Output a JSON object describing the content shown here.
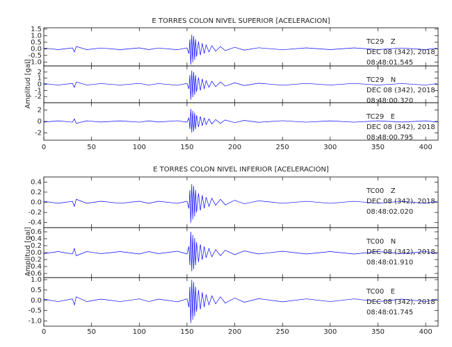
{
  "chart_data": [
    {
      "type": "line",
      "title": "E TORRES COLON NIVEL SUPERIOR [ACELERACION]",
      "y_label": "Amplitud [gal]",
      "color": "#0000ff",
      "xlim": [
        0,
        413
      ],
      "xticks": [
        0,
        50,
        100,
        150,
        200,
        250,
        300,
        350,
        400
      ],
      "x": [
        0,
        15,
        30,
        32,
        34,
        45,
        60,
        80,
        100,
        110,
        120,
        140,
        150,
        152,
        153,
        154,
        155,
        156,
        157,
        158,
        159,
        160,
        162,
        164,
        166,
        168,
        170,
        173,
        176,
        180,
        185,
        190,
        200,
        210,
        225,
        250,
        275,
        300,
        325,
        350,
        375,
        400,
        412
      ],
      "panels": [
        {
          "station": "TC29   Z",
          "date": "DEC 08 (342), 2018",
          "time": "08:48:01.545",
          "ylim": [
            -1.3,
            1.6
          ],
          "yticks": [
            {
              "value": -1,
              "label": "-1.0"
            },
            -0.5,
            {
              "value": 0,
              "label": "0.0"
            },
            0.5,
            {
              "value": 1,
              "label": "1.0"
            },
            1.5
          ],
          "values": [
            0.06,
            -0.06,
            0.07,
            -0.24,
            0.18,
            -0.06,
            0.06,
            -0.06,
            0.07,
            -0.06,
            0.06,
            -0.07,
            0.07,
            -0.36,
            0.72,
            -1.2,
            1.08,
            -1.02,
            0.96,
            -0.84,
            0.72,
            -0.6,
            0.54,
            -0.48,
            0.42,
            -0.36,
            0.3,
            -0.24,
            0.24,
            -0.18,
            0.18,
            -0.14,
            0.12,
            -0.1,
            0.08,
            -0.07,
            0.07,
            -0.06,
            0.07,
            -0.06,
            0.06,
            -0.06,
            0.06
          ]
        },
        {
          "station": "TC29   N",
          "date": "DEC 08 (342), 2018",
          "time": "08:48:00.320",
          "ylim": [
            -3,
            3
          ],
          "yticks": [
            -2,
            -1,
            0,
            1,
            2
          ],
          "values": [
            0.12,
            -0.12,
            0.15,
            -0.5,
            0.38,
            -0.12,
            0.12,
            -0.12,
            0.15,
            -0.12,
            0.12,
            -0.15,
            0.15,
            -0.75,
            1.5,
            -2.5,
            2.25,
            -2.1,
            2,
            -1.75,
            1.5,
            -1.25,
            1.1,
            -1,
            0.9,
            -0.75,
            0.6,
            -0.5,
            0.5,
            -0.38,
            0.38,
            -0.3,
            0.25,
            -0.2,
            0.18,
            -0.15,
            0.15,
            -0.12,
            0.15,
            -0.12,
            0.12,
            -0.12,
            0.12
          ]
        },
        {
          "station": "TC29   E",
          "date": "DEC 08 (342), 2018",
          "time": "08:48:00.795",
          "ylim": [
            -3.3,
            3.3
          ],
          "yticks": [
            -2,
            0,
            2
          ],
          "values": [
            -0.11,
            0.11,
            -0.13,
            0.44,
            -0.33,
            0.11,
            -0.11,
            0.11,
            -0.13,
            0.11,
            -0.11,
            0.13,
            -0.13,
            0.66,
            -1.32,
            2.2,
            -1.98,
            1.87,
            -1.76,
            1.54,
            -1.32,
            1.1,
            -0.99,
            0.88,
            -0.77,
            0.66,
            -0.55,
            0.44,
            -0.44,
            0.33,
            -0.33,
            0.26,
            -0.22,
            0.18,
            -0.15,
            0.13,
            -0.13,
            0.11,
            -0.13,
            0.11,
            -0.11,
            0.11,
            -0.11
          ]
        }
      ]
    },
    {
      "type": "line",
      "title": "E TORRES COLON NIVEL INFERIOR [ACELERACION]",
      "y_label": "Amplitud [gal]",
      "color": "#0000ff",
      "xlim": [
        0,
        413
      ],
      "xticks": [
        0,
        50,
        100,
        150,
        200,
        250,
        300,
        350,
        400
      ],
      "x": [
        0,
        15,
        30,
        32,
        34,
        45,
        60,
        80,
        100,
        110,
        120,
        140,
        150,
        152,
        153,
        154,
        155,
        156,
        157,
        158,
        159,
        160,
        162,
        164,
        166,
        168,
        170,
        173,
        176,
        180,
        185,
        190,
        200,
        210,
        225,
        250,
        275,
        300,
        325,
        350,
        375,
        400,
        412
      ],
      "panels": [
        {
          "station": "TC00   Z",
          "date": "DEC 08 (342), 2018",
          "time": "08:48:02.020",
          "ylim": [
            -0.5,
            0.5
          ],
          "yticks": [
            -0.4,
            -0.2,
            {
              "value": 0,
              "label": "0.0"
            },
            0.2,
            0.4
          ],
          "values": [
            0.02,
            -0.02,
            0.02,
            -0.08,
            0.06,
            -0.02,
            0.02,
            -0.02,
            0.02,
            -0.02,
            0.02,
            -0.02,
            0.02,
            -0.12,
            0.24,
            -0.4,
            0.36,
            -0.34,
            0.32,
            -0.28,
            0.24,
            -0.2,
            0.18,
            -0.16,
            0.14,
            -0.12,
            0.1,
            -0.08,
            0.08,
            -0.06,
            0.06,
            -0.05,
            0.04,
            -0.03,
            0.03,
            -0.02,
            0.02,
            -0.02,
            0.02,
            -0.02,
            0.02,
            -0.02,
            0.02
          ]
        },
        {
          "station": "TC00   N",
          "date": "DEC 08 (342), 2018",
          "time": "08:48:01.910",
          "ylim": [
            -0.72,
            0.72
          ],
          "yticks": [
            -0.6,
            -0.4,
            -0.2,
            {
              "value": 0,
              "label": "0.0"
            },
            0.2,
            0.4,
            0.6
          ],
          "values": [
            -0.03,
            0.03,
            -0.04,
            0.12,
            -0.09,
            0.03,
            -0.03,
            0.03,
            -0.04,
            0.03,
            -0.03,
            0.04,
            -0.04,
            0.18,
            -0.36,
            0.6,
            -0.54,
            0.51,
            -0.48,
            0.42,
            -0.36,
            0.3,
            -0.27,
            0.24,
            -0.21,
            0.18,
            -0.15,
            0.12,
            -0.12,
            0.09,
            -0.09,
            0.07,
            -0.06,
            0.05,
            -0.04,
            0.04,
            -0.04,
            0.03,
            -0.04,
            0.03,
            -0.03,
            0.03,
            -0.03
          ]
        },
        {
          "station": "TC00   E",
          "date": "DEC 08 (342), 2018",
          "time": "08:48:01.745",
          "ylim": [
            -1.25,
            1.1
          ],
          "yticks": [
            {
              "value": -1,
              "label": "-1.0"
            },
            -0.5,
            {
              "value": 0,
              "label": "0.0"
            },
            0.5,
            {
              "value": 1,
              "label": "1.0"
            }
          ],
          "values": [
            0.06,
            -0.06,
            0.07,
            -0.22,
            0.17,
            -0.06,
            0.06,
            -0.06,
            0.07,
            -0.06,
            0.06,
            -0.07,
            0.07,
            -0.33,
            0.66,
            -1.1,
            0.99,
            -0.94,
            0.88,
            -0.77,
            0.66,
            -0.55,
            0.5,
            -0.44,
            0.39,
            -0.33,
            0.28,
            -0.22,
            0.22,
            -0.17,
            0.17,
            -0.13,
            0.11,
            -0.09,
            0.08,
            -0.07,
            0.07,
            -0.06,
            0.07,
            -0.06,
            0.06,
            -0.06,
            0.06
          ]
        }
      ]
    }
  ]
}
